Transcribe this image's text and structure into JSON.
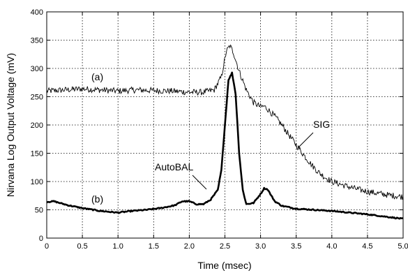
{
  "chart_data": {
    "type": "line",
    "xlabel": "Time (msec)",
    "ylabel": "Nirvana Log Output Voltage (mV)",
    "xlim": [
      0,
      5.0
    ],
    "ylim": [
      0,
      400
    ],
    "grid": true,
    "x_ticks": [
      "0",
      "0.5",
      "1.0",
      "1.5",
      "2.0",
      "2.5",
      "3.0",
      "3.5",
      "4.0",
      "4.5",
      "5.0"
    ],
    "y_ticks": [
      "0",
      "50",
      "100",
      "150",
      "200",
      "250",
      "300",
      "350",
      "400"
    ],
    "series": [
      {
        "name": "(a)",
        "style": "thin-noisy",
        "x": [
          0,
          0.25,
          0.5,
          0.75,
          1.0,
          1.25,
          1.5,
          1.75,
          2.0,
          2.2,
          2.35,
          2.45,
          2.52,
          2.57,
          2.62,
          2.7,
          2.8,
          2.9,
          3.0,
          3.05,
          3.1,
          3.2,
          3.3,
          3.4,
          3.5,
          3.6,
          3.7,
          3.8,
          3.9,
          4.0,
          4.2,
          4.4,
          4.6,
          4.8,
          5.0
        ],
        "y": [
          260,
          262,
          264,
          262,
          260,
          262,
          261,
          260,
          258,
          258,
          262,
          285,
          330,
          340,
          328,
          295,
          262,
          240,
          232,
          233,
          228,
          215,
          200,
          182,
          165,
          148,
          132,
          118,
          108,
          100,
          92,
          85,
          80,
          76,
          73
        ]
      },
      {
        "name": "(b)",
        "style": "thick",
        "x": [
          0,
          0.1,
          0.3,
          0.5,
          0.75,
          1.0,
          1.2,
          1.4,
          1.6,
          1.8,
          1.9,
          2.0,
          2.1,
          2.2,
          2.3,
          2.4,
          2.45,
          2.5,
          2.55,
          2.6,
          2.65,
          2.7,
          2.75,
          2.8,
          2.9,
          3.0,
          3.05,
          3.1,
          3.15,
          3.2,
          3.3,
          3.5,
          3.75,
          4.0,
          4.25,
          4.5,
          4.75,
          5.0
        ],
        "y": [
          64,
          65,
          58,
          53,
          48,
          45,
          48,
          50,
          53,
          58,
          65,
          65,
          60,
          60,
          68,
          85,
          120,
          200,
          280,
          292,
          255,
          150,
          85,
          60,
          62,
          78,
          88,
          86,
          75,
          65,
          57,
          52,
          50,
          48,
          45,
          42,
          38,
          34
        ]
      }
    ],
    "annotations": [
      "(a)",
      "(b)",
      "AutoBAL",
      "SIG"
    ]
  }
}
